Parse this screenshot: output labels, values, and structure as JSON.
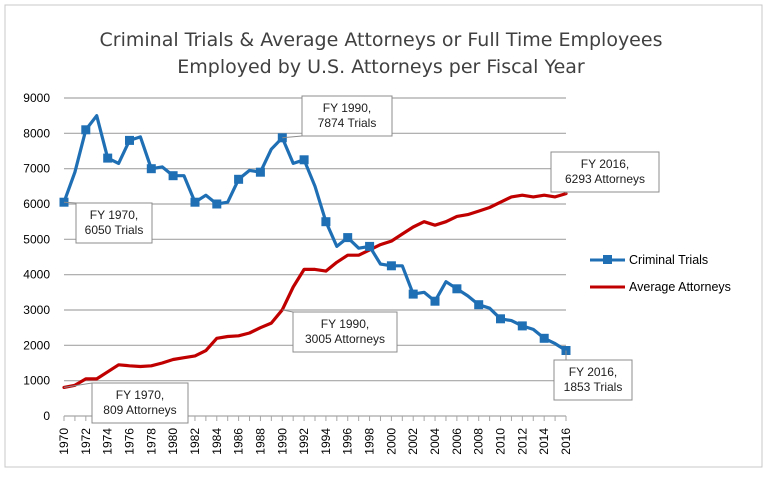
{
  "chart_data": {
    "type": "line",
    "title_lines": [
      "Criminal Trials & Average Attorneys or Full Time Employees",
      "Employed by U.S. Attorneys per Fiscal Year"
    ],
    "x": [
      1970,
      1971,
      1972,
      1973,
      1974,
      1975,
      1976,
      1977,
      1978,
      1979,
      1980,
      1981,
      1982,
      1983,
      1984,
      1985,
      1986,
      1987,
      1988,
      1989,
      1990,
      1991,
      1992,
      1993,
      1994,
      1995,
      1996,
      1997,
      1998,
      1999,
      2000,
      2001,
      2002,
      2003,
      2004,
      2005,
      2006,
      2007,
      2008,
      2009,
      2010,
      2011,
      2012,
      2013,
      2014,
      2015,
      2016
    ],
    "x_tick_labels": [
      "1970",
      "1972",
      "1974",
      "1976",
      "1978",
      "1980",
      "1982",
      "1984",
      "1986",
      "1988",
      "1990",
      "1992",
      "1994",
      "1996",
      "1998",
      "2000",
      "2002",
      "2004",
      "2006",
      "2008",
      "2010",
      "2012",
      "2014",
      "2016"
    ],
    "y_ticks": [
      0,
      1000,
      2000,
      3000,
      4000,
      5000,
      6000,
      7000,
      8000,
      9000
    ],
    "ylim": [
      0,
      9000
    ],
    "xlim": [
      1970,
      2016
    ],
    "grid": true,
    "legend_position": "right",
    "series": [
      {
        "name": "Criminal Trials",
        "color": "#1f6fb5",
        "marker": "square",
        "values": [
          6050,
          6900,
          8100,
          8500,
          7300,
          7150,
          7800,
          7900,
          7000,
          7050,
          6800,
          6800,
          6050,
          6250,
          6000,
          6050,
          6700,
          6950,
          6900,
          7550,
          7874,
          7150,
          7250,
          6500,
          5500,
          4800,
          5050,
          4750,
          4800,
          4300,
          4250,
          4250,
          3450,
          3500,
          3250,
          3800,
          3600,
          3400,
          3150,
          3050,
          2750,
          2700,
          2550,
          2450,
          2200,
          2050,
          1853
        ]
      },
      {
        "name": "Average Attorneys",
        "color": "#c00000",
        "marker": "none",
        "values": [
          809,
          870,
          1050,
          1050,
          1250,
          1450,
          1420,
          1400,
          1420,
          1500,
          1600,
          1650,
          1700,
          1850,
          2200,
          2250,
          2270,
          2350,
          2500,
          2630,
          3005,
          3650,
          4150,
          4150,
          4100,
          4350,
          4550,
          4550,
          4700,
          4850,
          4950,
          5150,
          5350,
          5500,
          5400,
          5500,
          5650,
          5700,
          5800,
          5900,
          6050,
          6200,
          6250,
          6200,
          6250,
          6200,
          6293
        ]
      }
    ],
    "callouts": [
      {
        "lines": [
          "FY 1970,",
          "6050 Trials"
        ],
        "x": 1970,
        "y": 6050
      },
      {
        "lines": [
          "FY 1990,",
          "7874 Trials"
        ],
        "x": 1990,
        "y": 7874
      },
      {
        "lines": [
          "FY 2016,",
          "6293 Attorneys"
        ],
        "x": 2016,
        "y": 6293
      },
      {
        "lines": [
          "FY 1990,",
          "3005 Attorneys"
        ],
        "x": 1990,
        "y": 3005
      },
      {
        "lines": [
          "FY 1970,",
          "809 Attorneys"
        ],
        "x": 1970,
        "y": 809
      },
      {
        "lines": [
          "FY 2016,",
          "1853 Trials"
        ],
        "x": 2016,
        "y": 1853
      }
    ]
  }
}
